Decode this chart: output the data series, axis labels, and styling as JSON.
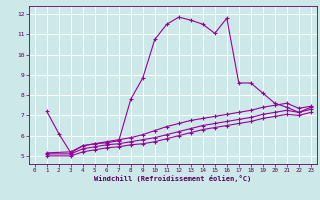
{
  "title": "",
  "xlabel": "Windchill (Refroidissement éolien,°C)",
  "bg_color": "#cce8e8",
  "grid_color": "#ffffff",
  "line_color": "#990099",
  "xlim": [
    -0.5,
    23.5
  ],
  "ylim": [
    4.6,
    12.4
  ],
  "xticks": [
    0,
    1,
    2,
    3,
    4,
    5,
    6,
    7,
    8,
    9,
    10,
    11,
    12,
    13,
    14,
    15,
    16,
    17,
    18,
    19,
    20,
    21,
    22,
    23
  ],
  "yticks": [
    5,
    6,
    7,
    8,
    9,
    10,
    11,
    12
  ],
  "series": [
    {
      "x": [
        1,
        2,
        3,
        4,
        5,
        6,
        7,
        8,
        9,
        10,
        11,
        12,
        13,
        14,
        15,
        16,
        17,
        18,
        19,
        20,
        21,
        22,
        23
      ],
      "y": [
        7.2,
        6.1,
        5.15,
        5.5,
        5.6,
        5.65,
        5.75,
        7.8,
        8.85,
        10.75,
        11.5,
        11.85,
        11.7,
        11.5,
        11.05,
        11.8,
        8.6,
        8.6,
        8.1,
        7.6,
        7.4,
        7.15,
        7.4
      ]
    },
    {
      "x": [
        1,
        3,
        4,
        5,
        6,
        7,
        8,
        9,
        10,
        11,
        12,
        13,
        14,
        15,
        16,
        17,
        18,
        19,
        20,
        21,
        22,
        23
      ],
      "y": [
        5.15,
        5.2,
        5.5,
        5.6,
        5.7,
        5.8,
        5.9,
        6.05,
        6.25,
        6.45,
        6.6,
        6.75,
        6.85,
        6.95,
        7.05,
        7.15,
        7.25,
        7.4,
        7.5,
        7.6,
        7.35,
        7.45
      ]
    },
    {
      "x": [
        1,
        3,
        4,
        5,
        6,
        7,
        8,
        9,
        10,
        11,
        12,
        13,
        14,
        15,
        16,
        17,
        18,
        19,
        20,
        21,
        22,
        23
      ],
      "y": [
        5.1,
        5.1,
        5.35,
        5.45,
        5.55,
        5.6,
        5.7,
        5.8,
        5.9,
        6.05,
        6.2,
        6.35,
        6.5,
        6.6,
        6.7,
        6.8,
        6.9,
        7.05,
        7.15,
        7.25,
        7.15,
        7.3
      ]
    },
    {
      "x": [
        1,
        3,
        4,
        5,
        6,
        7,
        8,
        9,
        10,
        11,
        12,
        13,
        14,
        15,
        16,
        17,
        18,
        19,
        20,
        21,
        22,
        23
      ],
      "y": [
        5.0,
        5.0,
        5.2,
        5.3,
        5.4,
        5.45,
        5.55,
        5.6,
        5.7,
        5.85,
        6.0,
        6.15,
        6.3,
        6.4,
        6.5,
        6.6,
        6.7,
        6.85,
        6.95,
        7.05,
        7.0,
        7.15
      ]
    }
  ]
}
